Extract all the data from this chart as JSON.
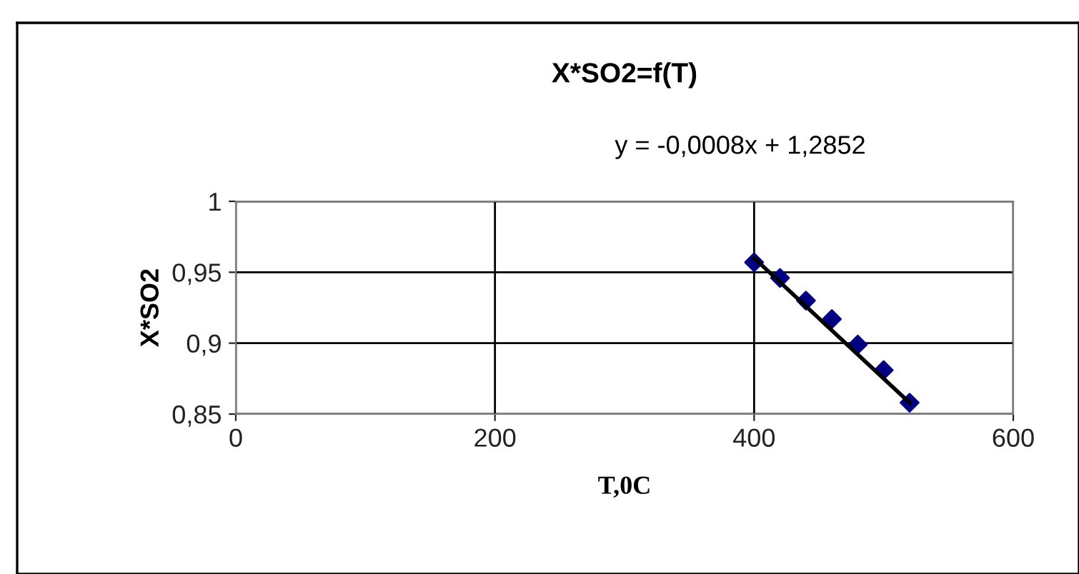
{
  "chart_data": {
    "type": "scatter",
    "title": "X*SO2=f(T)",
    "xlabel": "T,0C",
    "ylabel": "X*SO2",
    "annotations": [
      "y = -0,0008x + 1,2852"
    ],
    "xlim": [
      0,
      600
    ],
    "xticks": [
      0,
      200,
      400,
      600
    ],
    "ylim": [
      0.85,
      1
    ],
    "yticks": [
      {
        "value": 0.85,
        "label": "0,85"
      },
      {
        "value": 0.9,
        "label": "0,9"
      },
      {
        "value": 0.95,
        "label": "0,95"
      },
      {
        "value": 1,
        "label": "1"
      }
    ],
    "grid": true,
    "series": [
      {
        "type": "scatter",
        "marker": "diamond",
        "color": "#000080",
        "x": [
          400,
          420,
          440,
          460,
          480,
          500,
          520
        ],
        "values": [
          0.957,
          0.946,
          0.93,
          0.917,
          0.899,
          0.881,
          0.858
        ]
      },
      {
        "type": "line",
        "marker": "none",
        "color": "#000000",
        "x": [
          400,
          520
        ],
        "values": [
          0.96,
          0.858
        ]
      }
    ]
  }
}
